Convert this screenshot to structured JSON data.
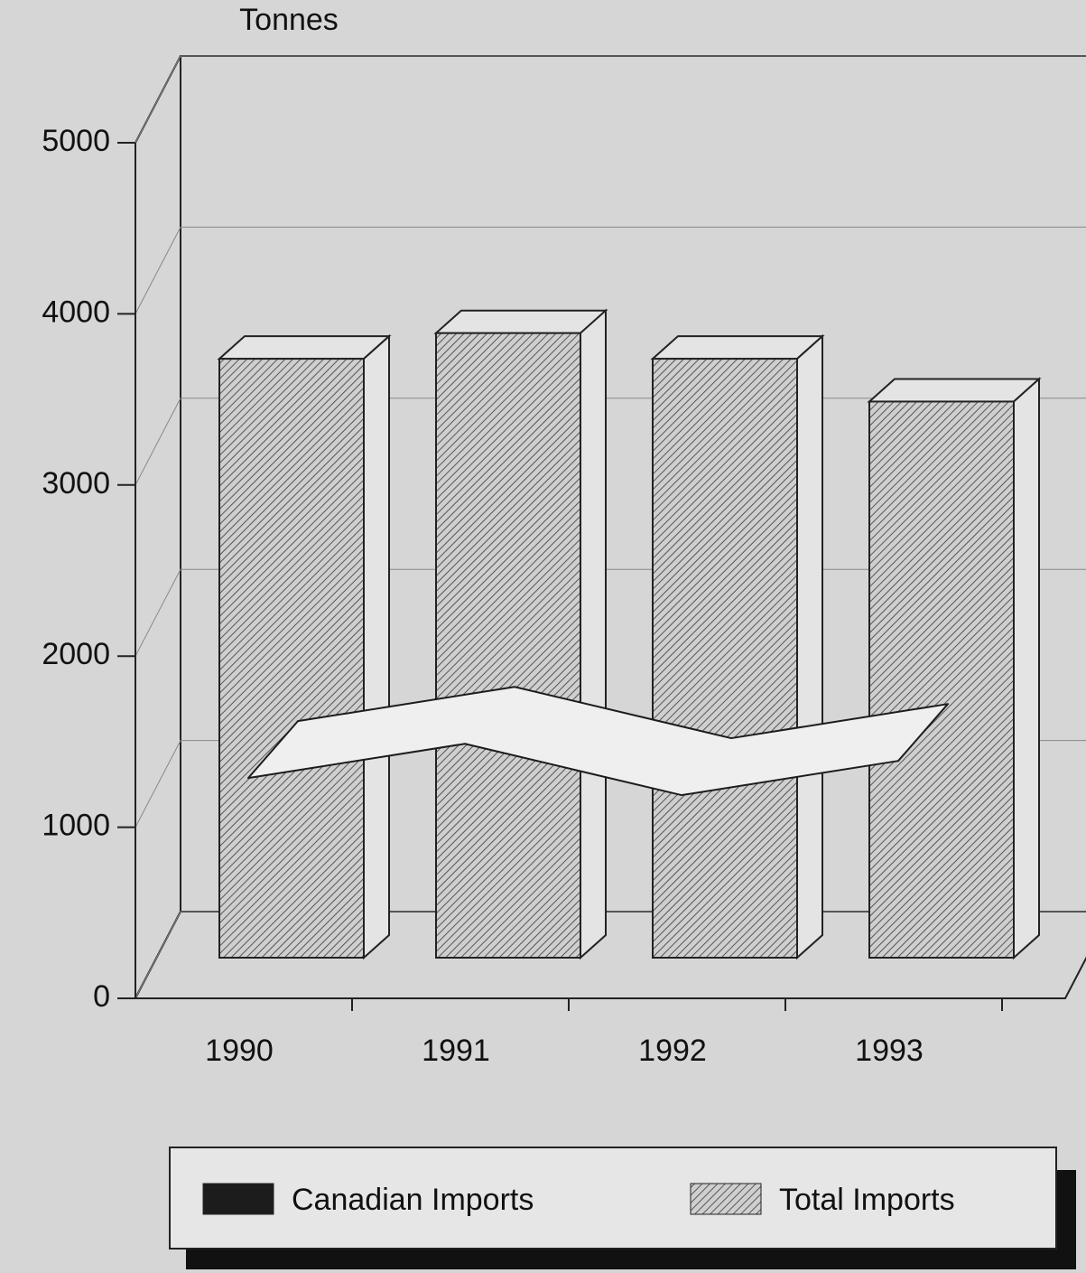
{
  "chart_data": {
    "type": "bar3d",
    "y_label": "Tonnes",
    "categories": [
      "1990",
      "1991",
      "1992",
      "1993"
    ],
    "series": [
      {
        "name": "Canadian Imports",
        "color": "#1c1c1c",
        "style": "ribbon",
        "values": [
          1050,
          1250,
          950,
          1150
        ]
      },
      {
        "name": "Total Imports",
        "color": "#555555",
        "style": "hatched-bar",
        "values": [
          3500,
          3650,
          3500,
          3250
        ]
      }
    ],
    "ylim": [
      0,
      5000
    ],
    "yticks": [
      0,
      1000,
      2000,
      3000,
      4000,
      5000
    ],
    "grid": true
  }
}
